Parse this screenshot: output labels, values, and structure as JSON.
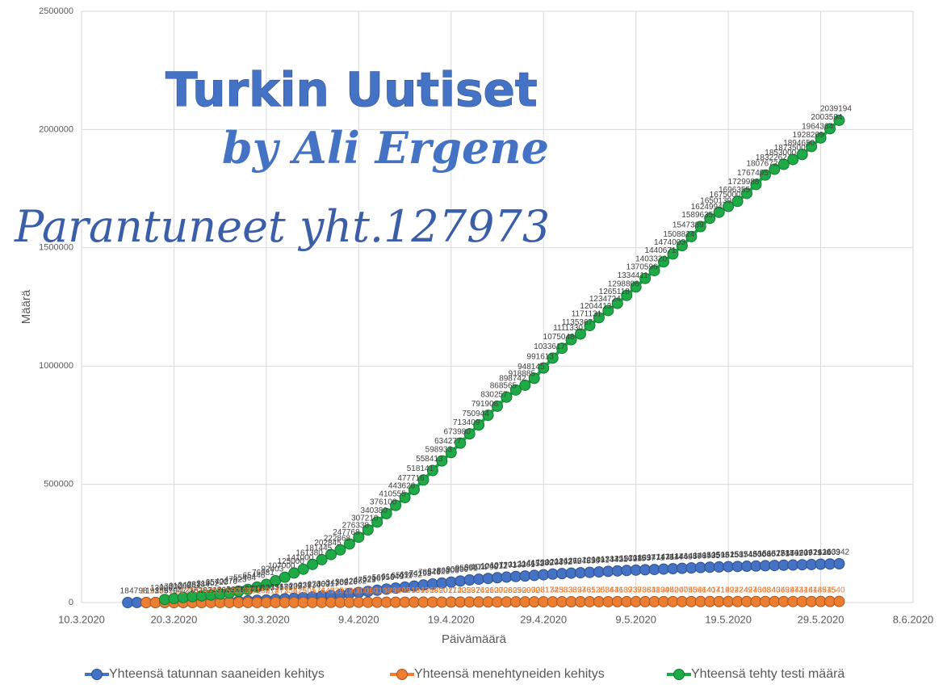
{
  "chart_data": {
    "type": "line",
    "annotations": [
      "Turkin Uutiset",
      "by Ali Ergene",
      "Parantuneet yht.127973"
    ],
    "xlabel": "Päivämäärä",
    "ylabel": "Määrä",
    "x": [
      "15.3.2020",
      "16.3.2020",
      "17.3.2020",
      "18.3.2020",
      "19.3.2020",
      "20.3.2020",
      "21.3.2020",
      "22.3.2020",
      "23.3.2020",
      "24.3.2020",
      "25.3.2020",
      "26.3.2020",
      "27.3.2020",
      "28.3.2020",
      "29.3.2020",
      "30.3.2020",
      "31.3.2020",
      "1.4.2020",
      "2.4.2020",
      "3.4.2020",
      "4.4.2020",
      "5.4.2020",
      "6.4.2020",
      "7.4.2020",
      "8.4.2020",
      "9.4.2020",
      "10.4.2020",
      "11.4.2020",
      "12.4.2020",
      "13.4.2020",
      "14.4.2020",
      "15.4.2020",
      "16.4.2020",
      "17.4.2020",
      "18.4.2020",
      "19.4.2020",
      "20.4.2020",
      "21.4.2020",
      "22.4.2020",
      "23.4.2020",
      "24.4.2020",
      "25.4.2020",
      "26.4.2020",
      "27.4.2020",
      "28.4.2020",
      "29.4.2020",
      "30.4.2020",
      "1.5.2020",
      "2.5.2020",
      "3.5.2020",
      "4.5.2020",
      "5.5.2020",
      "6.5.2020",
      "7.5.2020",
      "8.5.2020",
      "9.5.2020",
      "10.5.2020",
      "11.5.2020",
      "12.5.2020",
      "13.5.2020",
      "14.5.2020",
      "15.5.2020",
      "16.5.2020",
      "17.5.2020",
      "18.5.2020",
      "19.5.2020",
      "20.5.2020",
      "21.5.2020",
      "22.5.2020",
      "23.5.2020",
      "24.5.2020",
      "25.5.2020",
      "26.5.2020",
      "27.5.2020",
      "28.5.2020",
      "29.5.2020",
      "30.5.2020",
      "31.5.2020"
    ],
    "series": [
      {
        "name": "Yhteensä tatunnan saaneiden kehitys",
        "color": "#4472c4",
        "values": [
          18,
          47,
          98,
          191,
          359,
          670,
          947,
          1236,
          1529,
          1872,
          2433,
          3629,
          5698,
          7402,
          9217,
          10827,
          13531,
          15679,
          18135,
          20921,
          23934,
          27069,
          30217,
          34109,
          38226,
          42282,
          47029,
          52167,
          56956,
          61049,
          65111,
          69392,
          74193,
          78546,
          82329,
          86306,
          90980,
          95591,
          98674,
          101790,
          104912,
          107773,
          110130,
          112261,
          114653,
          117589,
          120204,
          122392,
          124375,
          126045,
          127659,
          129491,
          131744,
          133721,
          135569,
          137115,
          138657,
          139771,
          141475,
          143114,
          144749,
          146457,
          148067,
          149435,
          150593,
          151615,
          152587,
          153548,
          154500,
          155686,
          156827,
          157814,
          158762,
          159797,
          160979,
          162120,
          163103,
          163942
        ]
      },
      {
        "name": "Yhteensä menehtyneiden kehitys",
        "color": "#ed7d31",
        "values": [
          null,
          null,
          1,
          2,
          4,
          9,
          21,
          30,
          37,
          44,
          59,
          75,
          92,
          108,
          131,
          168,
          214,
          277,
          356,
          425,
          501,
          574,
          649,
          725,
          812,
          908,
          1006,
          1101,
          1198,
          1296,
          1403,
          1518,
          1643,
          1769,
          1890,
          2017,
          2140,
          2259,
          2376,
          2491,
          2600,
          2706,
          2805,
          2900,
          2992,
          3081,
          3174,
          3258,
          3336,
          3397,
          3461,
          3520,
          3584,
          3641,
          3689,
          3739,
          3786,
          3841,
          3894,
          3952,
          4007,
          4055,
          4096,
          4140,
          4171,
          4199,
          4222,
          4249,
          4276,
          4308,
          4340,
          4369,
          4397,
          4431,
          4461,
          4489,
          4515,
          4540
        ]
      },
      {
        "name": "Yhteensä tehty testi määrä",
        "color": "#1faa48",
        "values": [
          null,
          null,
          null,
          null,
          13000,
          17000,
          21000,
          24981,
          28384,
          31902,
          35720,
          40270,
          47823,
          55464,
          65446,
          76981,
          92403,
          107000,
          125000,
          141000,
          161380,
          181445,
          202845,
          222868,
          247768,
          276338,
          307210,
          340380,
          376100,
          410555,
          443626,
          477716,
          518141,
          558413,
          598933,
          634277,
          673980,
          713409,
          750944,
          791906,
          830257,
          868565,
          898742,
          918885,
          948145,
          991613,
          1033617,
          1075048,
          1111330,
          1135367,
          1171131,
          1204413,
          1234724,
          1265118,
          1298806,
          1334411,
          1370596,
          1403320,
          1440671,
          1474003,
          1508824,
          1547389,
          1589635,
          1624994,
          1650139,
          1675000,
          1696355,
          1729988,
          1767495,
          1807672,
          1832262,
          1853000,
          1873500,
          1894650,
          1928209,
          1964364,
          2003594,
          2039194
        ]
      }
    ],
    "xlim": [
      "10.3.2020",
      "8.6.2020"
    ],
    "xticks": [
      "10.3.2020",
      "20.3.2020",
      "30.3.2020",
      "9.4.2020",
      "19.4.2020",
      "29.4.2020",
      "9.5.2020",
      "19.5.2020",
      "29.5.2020",
      "8.6.2020"
    ],
    "ylim": [
      0,
      2500000
    ],
    "yticks": [
      0,
      500000,
      1000000,
      1500000,
      2000000,
      2500000
    ],
    "grid": true,
    "legend": "bottom"
  }
}
